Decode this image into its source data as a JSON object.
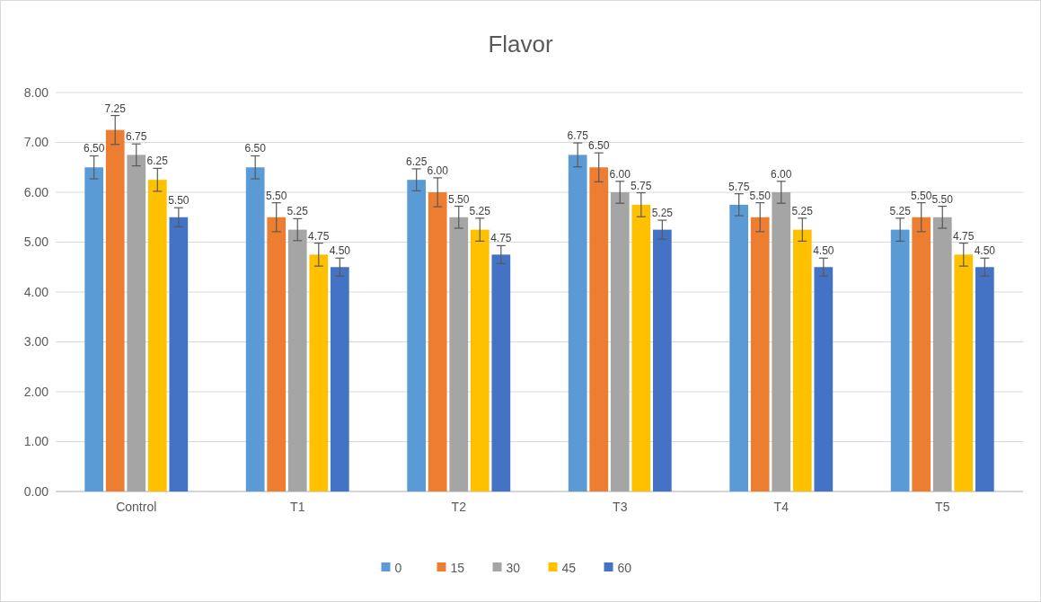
{
  "chart_data": {
    "type": "bar",
    "title": "Flavor",
    "categories": [
      "Control",
      "T1",
      "T2",
      "T3",
      "T4",
      "T5"
    ],
    "series": [
      {
        "name": "0",
        "color": "#5b9bd5",
        "values": [
          6.5,
          6.5,
          6.25,
          6.75,
          5.75,
          5.25
        ],
        "errors": [
          0.23,
          0.23,
          0.22,
          0.24,
          0.22,
          0.23
        ],
        "value_labels": [
          "6.50",
          "6.50",
          "6.25",
          "6.75",
          "5.75",
          "5.25"
        ]
      },
      {
        "name": "15",
        "color": "#ed7d31",
        "values": [
          7.25,
          5.5,
          6.0,
          6.5,
          5.5,
          5.5
        ],
        "errors": [
          0.29,
          0.29,
          0.29,
          0.29,
          0.29,
          0.29
        ],
        "value_labels": [
          "7.25",
          "5.50",
          "6.00",
          "6.50",
          "5.50",
          "5.50"
        ]
      },
      {
        "name": "30",
        "color": "#a5a5a5",
        "values": [
          6.75,
          5.25,
          5.5,
          6.0,
          6.0,
          5.5
        ],
        "errors": [
          0.22,
          0.22,
          0.22,
          0.22,
          0.22,
          0.22
        ],
        "value_labels": [
          "6.75",
          "5.25",
          "5.50",
          "6.00",
          "6.00",
          "5.50"
        ]
      },
      {
        "name": "45",
        "color": "#ffc000",
        "values": [
          6.25,
          4.75,
          5.25,
          5.75,
          5.25,
          4.75
        ],
        "errors": [
          0.23,
          0.23,
          0.23,
          0.24,
          0.23,
          0.23
        ],
        "value_labels": [
          "6.25",
          "4.75",
          "5.25",
          "5.75",
          "5.25",
          "4.75"
        ]
      },
      {
        "name": "60",
        "color": "#4472c4",
        "values": [
          5.5,
          4.5,
          4.75,
          5.25,
          4.5,
          4.5
        ],
        "errors": [
          0.19,
          0.18,
          0.18,
          0.19,
          0.18,
          0.18
        ],
        "value_labels": [
          "5.50",
          "4.50",
          "4.75",
          "5.25",
          "4.50",
          "4.50"
        ]
      }
    ],
    "ylim": [
      0,
      8
    ],
    "yticks": [
      {
        "value": 0,
        "label": "0.00"
      },
      {
        "value": 1,
        "label": "1.00"
      },
      {
        "value": 2,
        "label": "2.00"
      },
      {
        "value": 3,
        "label": "3.00"
      },
      {
        "value": 4,
        "label": "4.00"
      },
      {
        "value": 5,
        "label": "5.00"
      },
      {
        "value": 6,
        "label": "6.00"
      },
      {
        "value": 7,
        "label": "7.00"
      },
      {
        "value": 8,
        "label": "8.00"
      }
    ],
    "grid": "y",
    "legend": "bottom"
  }
}
